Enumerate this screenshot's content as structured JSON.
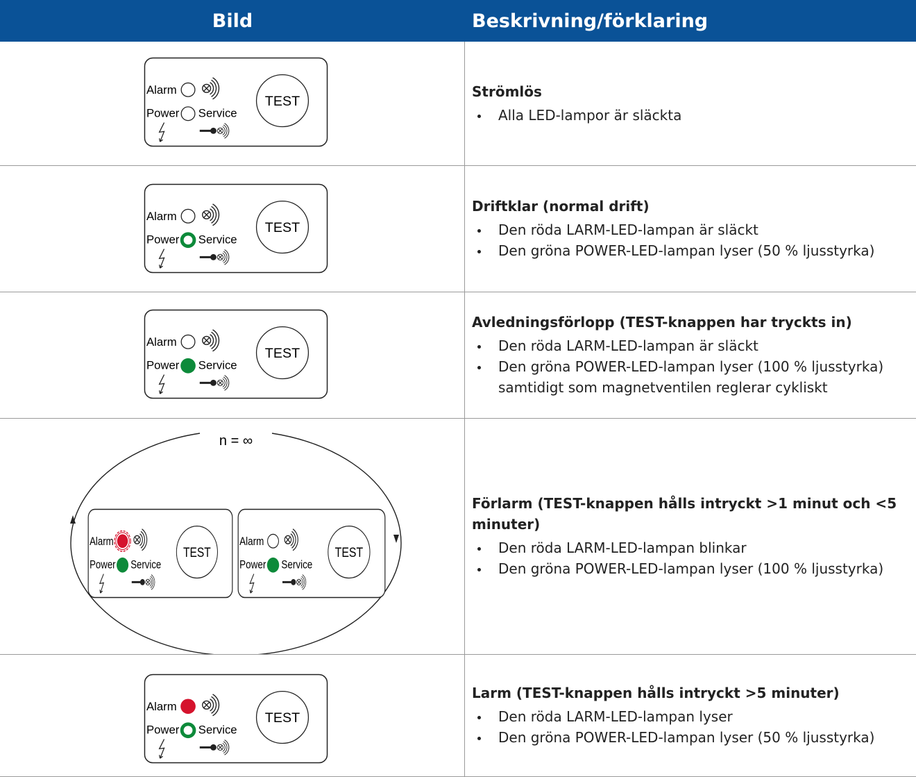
{
  "header": {
    "columns": [
      "Bild",
      "Beskrivning/förklaring"
    ]
  },
  "panel_labels": {
    "alarm": "Alarm",
    "power": "Power",
    "service": "Service",
    "test": "TEST"
  },
  "cycle_label": "n = ∞",
  "rows": [
    {
      "title": "Strömlös",
      "bullets": [
        "Alla LED-lampor är släckta"
      ]
    },
    {
      "title": "Driftklar (normal drift)",
      "bullets": [
        "Den röda LARM-LED-lampan är släckt",
        "Den gröna POWER-LED-lampan lyser (50 % ljusstyrka)"
      ]
    },
    {
      "title": "Avledningsförlopp (TEST-knappen har tryckts in)",
      "bullets": [
        "Den röda LARM-LED-lampan är släckt",
        "Den gröna POWER-LED-lampan lyser (100 % ljusstyrka) samtidigt som magnetventilen reglerar cykliskt"
      ]
    },
    {
      "title": "Förlarm (TEST-knappen hålls intryckt >1 minut och <5 minuter)",
      "bullets": [
        "Den röda LARM-LED-lampan blinkar",
        "Den gröna POWER-LED-lampan lyser (100 % ljusstyrka)"
      ]
    },
    {
      "title": "Larm (TEST-knappen hålls intryckt >5 minuter)",
      "bullets": [
        "Den röda LARM-LED-lampan lyser",
        "Den gröna POWER-LED-lampan lyser (50 % ljusstyrka)"
      ]
    }
  ]
}
